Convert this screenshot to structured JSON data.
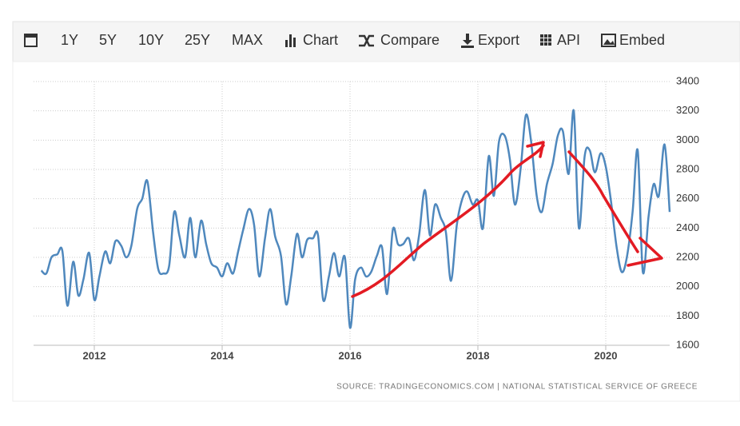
{
  "toolbar": {
    "items": [
      "1Y",
      "5Y",
      "10Y",
      "25Y",
      "MAX",
      "Chart",
      "Compare",
      "Export",
      "API",
      "Embed"
    ]
  },
  "chart_data": {
    "type": "line",
    "source": "SOURCE: TRADINGECONOMICS.COM  |  NATIONAL STATISTICAL SERVICE OF GREECE",
    "x": [
      2011.17,
      2011.25,
      2011.33,
      2011.42,
      2011.5,
      2011.58,
      2011.67,
      2011.75,
      2011.83,
      2011.92,
      2012,
      2012.08,
      2012.17,
      2012.25,
      2012.33,
      2012.42,
      2012.5,
      2012.58,
      2012.67,
      2012.75,
      2012.83,
      2012.92,
      2013,
      2013.08,
      2013.17,
      2013.25,
      2013.33,
      2013.42,
      2013.5,
      2013.58,
      2013.67,
      2013.75,
      2013.83,
      2013.92,
      2014,
      2014.08,
      2014.17,
      2014.25,
      2014.33,
      2014.42,
      2014.5,
      2014.58,
      2014.67,
      2014.75,
      2014.83,
      2014.92,
      2015,
      2015.08,
      2015.17,
      2015.25,
      2015.33,
      2015.42,
      2015.5,
      2015.58,
      2015.67,
      2015.75,
      2015.83,
      2015.92,
      2016,
      2016.08,
      2016.17,
      2016.25,
      2016.33,
      2016.42,
      2016.5,
      2016.58,
      2016.67,
      2016.75,
      2016.83,
      2016.92,
      2017,
      2017.08,
      2017.17,
      2017.25,
      2017.33,
      2017.42,
      2017.5,
      2017.58,
      2017.67,
      2017.75,
      2017.83,
      2017.92,
      2018,
      2018.08,
      2018.17,
      2018.25,
      2018.33,
      2018.42,
      2018.5,
      2018.58,
      2018.67,
      2018.75,
      2018.83,
      2018.92,
      2019,
      2019.08,
      2019.17,
      2019.25,
      2019.33,
      2019.42,
      2019.5,
      2019.58,
      2019.67,
      2019.75,
      2019.83,
      2019.92,
      2020,
      2020.08,
      2020.17,
      2020.25,
      2020.33,
      2020.42,
      2020.5,
      2020.58,
      2020.67,
      2020.75,
      2020.83,
      2020.92,
      2021
    ],
    "series": [
      {
        "color": "#4f88bd",
        "values": [
          2110,
          2090,
          2200,
          2220,
          2245,
          1870,
          2170,
          1940,
          2050,
          2230,
          1910,
          2070,
          2240,
          2160,
          2310,
          2280,
          2200,
          2280,
          2530,
          2600,
          2720,
          2370,
          2120,
          2090,
          2140,
          2510,
          2350,
          2200,
          2470,
          2200,
          2450,
          2290,
          2160,
          2130,
          2070,
          2160,
          2090,
          2240,
          2390,
          2530,
          2420,
          2070,
          2330,
          2530,
          2340,
          2210,
          1880,
          2070,
          2360,
          2200,
          2320,
          2330,
          2350,
          1910,
          2070,
          2230,
          2070,
          2200,
          1720,
          2050,
          2130,
          2070,
          2100,
          2210,
          2270,
          1950,
          2390,
          2290,
          2290,
          2330,
          2180,
          2350,
          2660,
          2350,
          2560,
          2470,
          2370,
          2040,
          2420,
          2590,
          2650,
          2560,
          2590,
          2400,
          2890,
          2620,
          2990,
          3030,
          2870,
          2560,
          2810,
          3170,
          3000,
          2620,
          2510,
          2700,
          2840,
          3030,
          3060,
          2770,
          3200,
          2400,
          2890,
          2930,
          2780,
          2910,
          2820,
          2590,
          2270,
          2100,
          2200,
          2510,
          2930,
          2100,
          2480,
          2700,
          2620,
          2970,
          2510
        ]
      }
    ],
    "xlim": [
      2011.05,
      2021.0
    ],
    "xticks": [
      2012,
      2014,
      2016,
      2018,
      2020
    ],
    "ylim": [
      1600,
      3400
    ],
    "yticks": [
      1600,
      1800,
      2000,
      2200,
      2400,
      2600,
      2800,
      3000,
      3200,
      3400
    ],
    "grid": true
  }
}
